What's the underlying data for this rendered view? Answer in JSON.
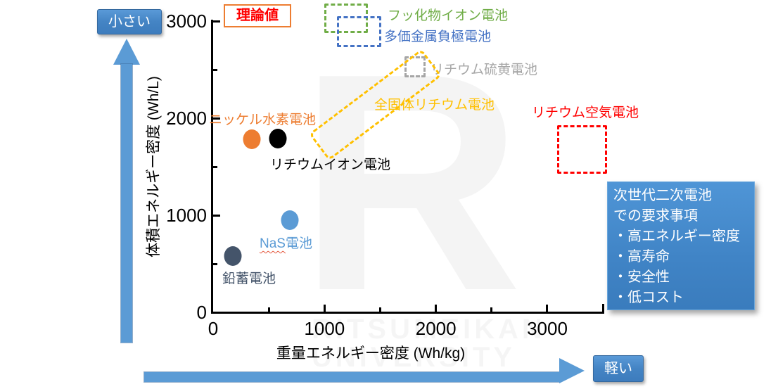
{
  "chart_data": {
    "type": "scatter",
    "title": "",
    "xlabel": "重量エネルギー密度 (Wh/kg)",
    "ylabel": "体積エネルギー密度 (Wh/L)",
    "xlim": [
      0,
      3500
    ],
    "ylim": [
      0,
      3000
    ],
    "xticks": [
      0,
      1000,
      2000,
      3000
    ],
    "yticks": [
      0,
      1000,
      2000,
      3000
    ],
    "grid": false,
    "points": [
      {
        "id": "lead-acid",
        "label": "鉛蓄電池",
        "x": 180,
        "y": 580,
        "color": "#44546A"
      },
      {
        "id": "nas",
        "label": "NaS電池",
        "x": 690,
        "y": 950,
        "color": "#5B9BD5",
        "spellcheck_underline": "NaS"
      },
      {
        "id": "nimh",
        "label": "ニッケル水素電池",
        "x": 350,
        "y": 1780,
        "color": "#ED7D31"
      },
      {
        "id": "li-ion",
        "label": "リチウムイオン電池",
        "x": 580,
        "y": 1790,
        "color": "#000000",
        "label_color": "#000000"
      }
    ],
    "regions": [
      {
        "id": "fluoride",
        "label": "フッ化物イオン電池",
        "x": [
          1000,
          1390
        ],
        "y": [
          2880,
          3180
        ],
        "color": "#70AD47"
      },
      {
        "id": "multivalent",
        "label": "多価金属負極電池",
        "x": [
          1110,
          1510
        ],
        "y": [
          2730,
          3050
        ],
        "color": "#4472C4"
      },
      {
        "id": "li-sulfur",
        "label": "リチウム硫黄電池",
        "x": [
          1720,
          1910
        ],
        "y": [
          2420,
          2640
        ],
        "color": "#A6A6A6"
      },
      {
        "id": "solid-state",
        "label": "全固体リチウム電池",
        "x": [
          900,
          1980
        ],
        "y": [
          1750,
          2570
        ],
        "color": "#FFC000",
        "shape": "rotated-band"
      },
      {
        "id": "li-air",
        "label": "リチウム空気電池",
        "x": [
          3090,
          3540
        ],
        "y": [
          1430,
          1930
        ],
        "color": "#FF0000"
      }
    ],
    "annotation": "理論値"
  },
  "theory_label": "理論値",
  "axis_arrows": {
    "y_direction_label": "小さい",
    "x_direction_label": "軽い"
  },
  "requirements_panel": {
    "lines": [
      "次世代二次電池",
      "での要求事項",
      "・高エネルギー密度",
      "・高寿命",
      "・安全性",
      "・低コスト"
    ]
  },
  "watermark": {
    "letter": "R",
    "line1": "RITSUMEIKAN",
    "line2": "UNIVERSITY"
  }
}
